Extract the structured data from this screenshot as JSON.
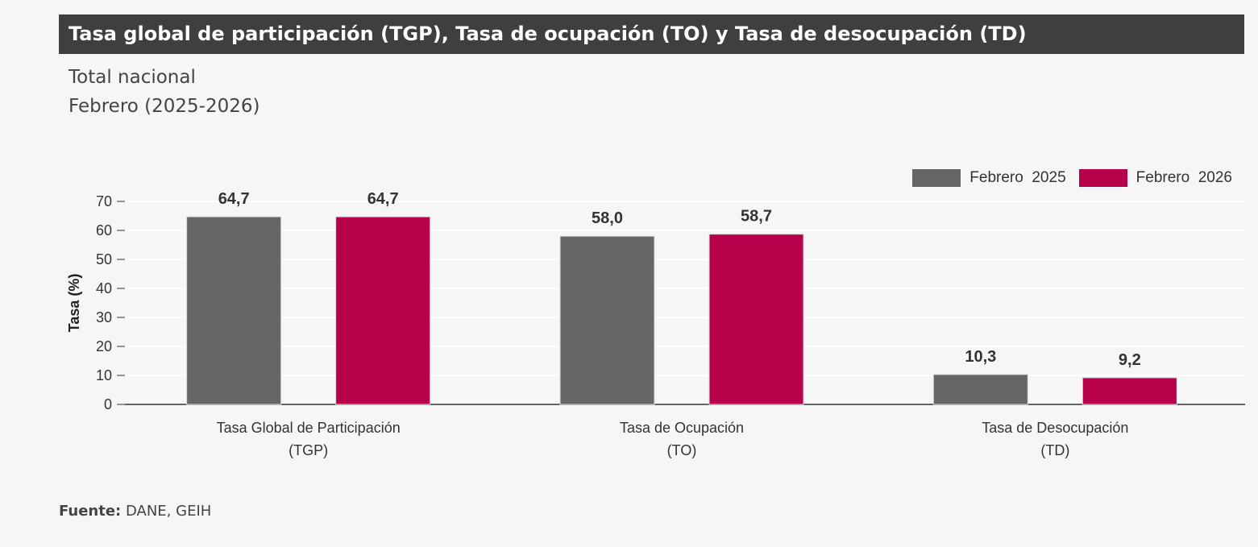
{
  "header": {
    "title": "Tasa global de participación (TGP), Tasa de ocupación (TO) y Tasa de desocupación (TD)",
    "subtitle_line1": "Total nacional",
    "subtitle_line2": "Febrero (2025-2026)"
  },
  "source": {
    "label": "Fuente:",
    "text": "DANE, GEIH"
  },
  "colors": {
    "series_2025": "#666666",
    "series_2026": "#b8004a",
    "title_bar": "#3f3f3f"
  },
  "chart_data": {
    "type": "bar",
    "title": "",
    "ylabel": "Tasa (%)",
    "xlabel": "",
    "ylim": [
      0,
      70
    ],
    "yticks": [
      0,
      10,
      20,
      30,
      40,
      50,
      60,
      70
    ],
    "grid": true,
    "legend_position": "top-right",
    "categories": [
      [
        "Tasa Global de Participación",
        "(TGP)"
      ],
      [
        "Tasa de Ocupación",
        "(TO)"
      ],
      [
        "Tasa de Desocupación",
        "(TD)"
      ]
    ],
    "series": [
      {
        "name": "Febrero  2025",
        "color": "#666666",
        "values": [
          64.7,
          58.0,
          10.3
        ],
        "labels": [
          "64,7",
          "58,0",
          "10,3"
        ]
      },
      {
        "name": "Febrero  2026",
        "color": "#b8004a",
        "values": [
          64.7,
          58.7,
          9.2
        ],
        "labels": [
          "64,7",
          "58,7",
          "9,2"
        ]
      }
    ]
  }
}
